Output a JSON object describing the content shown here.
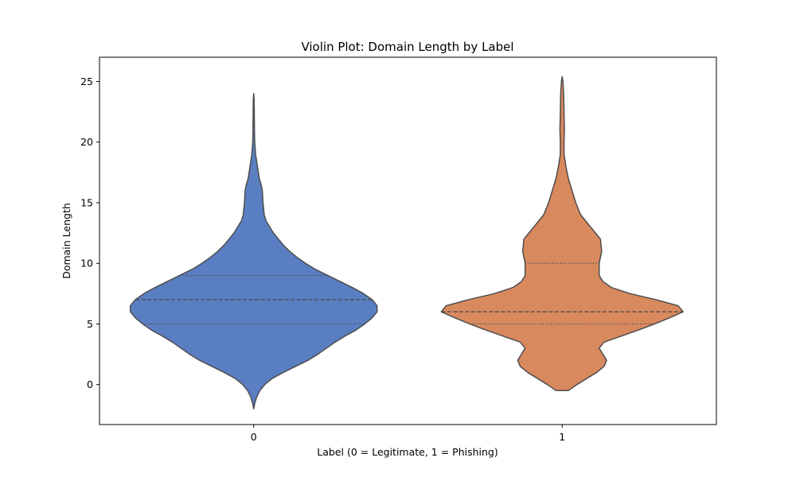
{
  "chart_data": {
    "type": "violin",
    "title": "Violin Plot: Domain Length by Label",
    "xlabel": "Label (0 = Legitimate, 1 = Phishing)",
    "ylabel": "Domain Length",
    "ylim": [
      -3.3,
      27.0
    ],
    "yticks": [
      0,
      5,
      10,
      15,
      20,
      25
    ],
    "categories": [
      "0",
      "1"
    ],
    "grid": false,
    "colors": {
      "0": "#5a7ec2",
      "1": "#d9895e",
      "outline": "#4d4d4d"
    },
    "violins": [
      {
        "category": "0",
        "quartiles": {
          "q1": 5,
          "median": 7,
          "q3": 9
        },
        "range": [
          -2.0,
          24.0
        ],
        "max_half_width_fraction": 0.8,
        "density": [
          [
            -2.0,
            0.0
          ],
          [
            -1.5,
            0.01
          ],
          [
            -1.0,
            0.025
          ],
          [
            -0.5,
            0.05
          ],
          [
            0.0,
            0.09
          ],
          [
            0.5,
            0.15
          ],
          [
            1.0,
            0.24
          ],
          [
            1.5,
            0.34
          ],
          [
            2.0,
            0.44
          ],
          [
            2.5,
            0.52
          ],
          [
            3.0,
            0.59
          ],
          [
            3.5,
            0.66
          ],
          [
            4.0,
            0.74
          ],
          [
            4.5,
            0.83
          ],
          [
            5.0,
            0.9
          ],
          [
            5.5,
            0.96
          ],
          [
            6.0,
            1.0
          ],
          [
            6.5,
            1.0
          ],
          [
            7.0,
            0.96
          ],
          [
            7.5,
            0.89
          ],
          [
            8.0,
            0.8
          ],
          [
            8.5,
            0.7
          ],
          [
            9.0,
            0.6
          ],
          [
            9.5,
            0.5
          ],
          [
            10.0,
            0.42
          ],
          [
            10.5,
            0.35
          ],
          [
            11.0,
            0.29
          ],
          [
            11.5,
            0.24
          ],
          [
            12.0,
            0.2
          ],
          [
            12.5,
            0.16
          ],
          [
            13.0,
            0.13
          ],
          [
            13.5,
            0.1
          ],
          [
            14.0,
            0.085
          ],
          [
            15.0,
            0.075
          ],
          [
            16.0,
            0.07
          ],
          [
            16.5,
            0.06
          ],
          [
            17.0,
            0.045
          ],
          [
            18.0,
            0.03
          ],
          [
            19.0,
            0.015
          ],
          [
            20.0,
            0.008
          ],
          [
            21.0,
            0.006
          ],
          [
            22.0,
            0.005
          ],
          [
            23.0,
            0.004
          ],
          [
            23.6,
            0.003
          ],
          [
            24.0,
            0.0
          ]
        ]
      },
      {
        "category": "1",
        "quartiles": {
          "q1": 5,
          "median": 6,
          "q3": 10
        },
        "range": [
          -0.5,
          25.5
        ],
        "max_half_width_fraction": 0.8,
        "density": [
          [
            -0.5,
            0.05
          ],
          [
            0.0,
            0.12
          ],
          [
            0.5,
            0.2
          ],
          [
            1.0,
            0.28
          ],
          [
            1.5,
            0.34
          ],
          [
            2.0,
            0.36
          ],
          [
            2.5,
            0.33
          ],
          [
            3.0,
            0.3
          ],
          [
            3.5,
            0.34
          ],
          [
            4.0,
            0.48
          ],
          [
            4.5,
            0.62
          ],
          [
            5.0,
            0.75
          ],
          [
            5.5,
            0.87
          ],
          [
            6.0,
            0.98
          ],
          [
            6.5,
            0.94
          ],
          [
            7.0,
            0.76
          ],
          [
            7.5,
            0.55
          ],
          [
            8.0,
            0.4
          ],
          [
            8.5,
            0.33
          ],
          [
            9.0,
            0.3
          ],
          [
            10.0,
            0.3
          ],
          [
            11.0,
            0.32
          ],
          [
            12.0,
            0.31
          ],
          [
            12.5,
            0.27
          ],
          [
            13.0,
            0.23
          ],
          [
            13.5,
            0.19
          ],
          [
            14.0,
            0.15
          ],
          [
            15.0,
            0.11
          ],
          [
            16.0,
            0.08
          ],
          [
            17.0,
            0.05
          ],
          [
            18.0,
            0.03
          ],
          [
            19.0,
            0.015
          ],
          [
            20.0,
            0.015
          ],
          [
            21.0,
            0.018
          ],
          [
            22.0,
            0.016
          ],
          [
            23.0,
            0.014
          ],
          [
            24.0,
            0.012
          ],
          [
            25.0,
            0.006
          ],
          [
            25.4,
            0.0
          ]
        ]
      }
    ]
  }
}
